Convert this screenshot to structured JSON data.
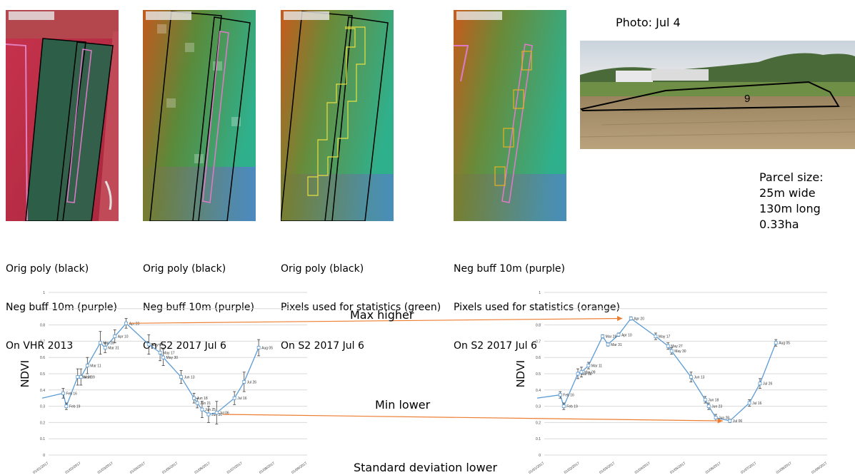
{
  "panels": [
    {
      "caption": [
        "Orig poly (black)",
        "Neg buff 10m (purple)",
        "On VHR 2013"
      ]
    },
    {
      "caption": [
        "Orig poly (black)",
        "Neg buff 10m (purple)",
        "On S2 2017 Jul 6"
      ]
    },
    {
      "caption": [
        "Orig poly (black)",
        "Pixels used for statistics (green)",
        "On S2 2017 Jul 6"
      ]
    },
    {
      "caption": [
        "Neg buff 10m (purple)",
        "Pixels used for statistics (orange)",
        "On S2 2017 Jul 6"
      ]
    }
  ],
  "photo": {
    "title": "Photo: Jul 4",
    "parcel_label": "9"
  },
  "parcel_size": {
    "title": "Parcel size:",
    "lines": [
      "25m wide",
      "130m long",
      "0.33ha"
    ]
  },
  "annotations": {
    "max": "Max higher",
    "min": "Min lower",
    "std": "Standard deviation lower"
  },
  "colors": {
    "line": "#5b9bd5",
    "arrow": "#ed7d31",
    "grid": "#d9d9d9",
    "errbar": "#404040"
  },
  "chart_data": [
    {
      "type": "line",
      "ylabel": "NDVI",
      "ylim": [
        0,
        1
      ],
      "yticks": [
        "0",
        "0.1",
        "0.2",
        "0.3",
        "0.4",
        "0.5",
        "0.6",
        "0.7",
        "0.8",
        "0.9",
        "1"
      ],
      "xticks": [
        "01/01/2017",
        "01/02/2017",
        "01/03/2017",
        "01/04/2017",
        "01/05/2017",
        "01/06/2017",
        "01/07/2017",
        "01/08/2017",
        "01/09/2017"
      ],
      "xlim": [
        0,
        8
      ],
      "series": [
        {
          "points": [
            {
              "x": -0.2,
              "y": 0.35,
              "label": ""
            },
            {
              "x": 0.45,
              "y": 0.38,
              "label": "Feb 16",
              "err": 0.03
            },
            {
              "x": 0.55,
              "y": 0.3,
              "label": "Feb 19",
              "err": 0.02
            },
            {
              "x": 0.9,
              "y": 0.48,
              "label": "Mar 08",
              "err": 0.05
            },
            {
              "x": 1.0,
              "y": 0.48,
              "label": "Mar 09",
              "err": 0.05
            },
            {
              "x": 1.2,
              "y": 0.55,
              "label": "Mar 11",
              "err": 0.05
            },
            {
              "x": 1.6,
              "y": 0.69,
              "label": "Mar 28",
              "err": 0.07
            },
            {
              "x": 1.75,
              "y": 0.66,
              "label": "Mar 31",
              "err": 0.03
            },
            {
              "x": 2.05,
              "y": 0.73,
              "label": "Apr 10",
              "err": 0.04
            },
            {
              "x": 2.4,
              "y": 0.81,
              "label": "Apr 20",
              "err": 0.03
            },
            {
              "x": 3.1,
              "y": 0.68,
              "label": "May 17",
              "err": 0.06
            },
            {
              "x": 3.45,
              "y": 0.63,
              "label": "May 17",
              "err": 0.05
            },
            {
              "x": 3.55,
              "y": 0.6,
              "label": "May 30",
              "err": 0.05
            },
            {
              "x": 4.1,
              "y": 0.48,
              "label": "Jun 13",
              "err": 0.04
            },
            {
              "x": 4.5,
              "y": 0.35,
              "label": "Jun 18",
              "err": 0.03
            },
            {
              "x": 4.6,
              "y": 0.32,
              "label": "Jun 21",
              "err": 0.03
            },
            {
              "x": 4.75,
              "y": 0.28,
              "label": "Jun 25",
              "err": 0.05
            },
            {
              "x": 4.95,
              "y": 0.25,
              "label": "Jun 30",
              "err": 0.05
            },
            {
              "x": 5.2,
              "y": 0.26,
              "label": "Jul 06",
              "err": 0.07
            },
            {
              "x": 5.75,
              "y": 0.35,
              "label": "Jul 16",
              "err": 0.04
            },
            {
              "x": 6.05,
              "y": 0.45,
              "label": "Jul 26",
              "err": 0.06
            },
            {
              "x": 6.5,
              "y": 0.66,
              "label": "Aug 05",
              "err": 0.05
            }
          ]
        }
      ]
    },
    {
      "type": "line",
      "ylabel": "NDVI",
      "ylim": [
        0,
        1
      ],
      "yticks": [
        "0",
        "0.1",
        "0.2",
        "0.3",
        "0.4",
        "0.5",
        "0.6",
        "0.7",
        "0.8",
        "0.9",
        "1"
      ],
      "xticks": [
        "01/01/2017",
        "01/02/2017",
        "01/03/2017",
        "01/04/2017",
        "01/05/2017",
        "01/06/2017",
        "01/07/2017",
        "01/08/2017",
        "01/09/2017"
      ],
      "xlim": [
        0,
        8
      ],
      "series": [
        {
          "points": [
            {
              "x": -0.2,
              "y": 0.35,
              "label": ""
            },
            {
              "x": 0.45,
              "y": 0.37,
              "label": "Feb 16",
              "err": 0.02
            },
            {
              "x": 0.55,
              "y": 0.3,
              "label": "Feb 19",
              "err": 0.02
            },
            {
              "x": 0.95,
              "y": 0.5,
              "label": "Mar 08",
              "err": 0.03
            },
            {
              "x": 1.05,
              "y": 0.51,
              "label": "Mar 09",
              "err": 0.03
            },
            {
              "x": 1.25,
              "y": 0.55,
              "label": "Mar 11",
              "err": 0.02
            },
            {
              "x": 1.65,
              "y": 0.73,
              "label": "Mar 28",
              "err": 0.01
            },
            {
              "x": 1.8,
              "y": 0.68,
              "label": "Mar 31",
              "err": 0.01
            },
            {
              "x": 2.1,
              "y": 0.74,
              "label": "Apr 10",
              "err": 0.01
            },
            {
              "x": 2.45,
              "y": 0.84,
              "label": "Apr 20",
              "err": 0.01
            },
            {
              "x": 3.15,
              "y": 0.73,
              "label": "May 17",
              "err": 0.02
            },
            {
              "x": 3.5,
              "y": 0.67,
              "label": "May 27",
              "err": 0.02
            },
            {
              "x": 3.6,
              "y": 0.64,
              "label": "May 30",
              "err": 0.02
            },
            {
              "x": 4.15,
              "y": 0.48,
              "label": "Jun 13",
              "err": 0.03
            },
            {
              "x": 4.55,
              "y": 0.34,
              "label": "Jun 18",
              "err": 0.02
            },
            {
              "x": 4.65,
              "y": 0.3,
              "label": "Jun 23",
              "err": 0.02
            },
            {
              "x": 4.85,
              "y": 0.23,
              "label": "Jun 28",
              "err": 0.02
            },
            {
              "x": 5.25,
              "y": 0.21,
              "label": "Jul 06",
              "err": 0.01
            },
            {
              "x": 5.8,
              "y": 0.32,
              "label": "Jul 16",
              "err": 0.02
            },
            {
              "x": 6.1,
              "y": 0.44,
              "label": "Jul 26",
              "err": 0.03
            },
            {
              "x": 6.55,
              "y": 0.69,
              "label": "Aug 05",
              "err": 0.02
            }
          ]
        }
      ]
    }
  ]
}
